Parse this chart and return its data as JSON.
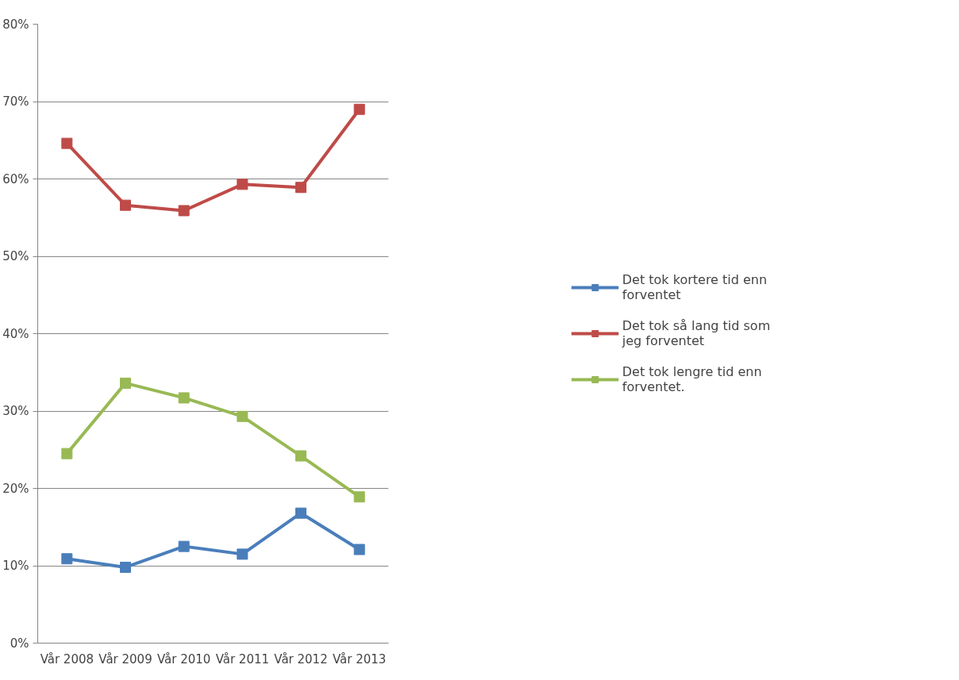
{
  "chart_data": {
    "type": "line",
    "categories": [
      "Vår 2008",
      "Vår 2009",
      "Vår 2010",
      "Vår 2011",
      "Vår 2012",
      "Vår 2013"
    ],
    "series": [
      {
        "name": "Det tok kortere tid enn forventet",
        "color": "#4a7ebb",
        "values": [
          10.9,
          9.8,
          12.5,
          11.5,
          16.8,
          12.1
        ]
      },
      {
        "name": "Det tok så lang tid som jeg forventet",
        "color": "#be4b48",
        "values": [
          64.6,
          56.6,
          55.9,
          59.3,
          58.9,
          69.0
        ]
      },
      {
        "name": "Det tok lengre tid enn forventet.",
        "color": "#98b954",
        "values": [
          24.5,
          33.6,
          31.7,
          29.3,
          24.2,
          18.9
        ]
      }
    ],
    "ylim": [
      0,
      80
    ],
    "yticks": [
      {
        "value": 0,
        "label": "0%"
      },
      {
        "value": 10,
        "label": "10%"
      },
      {
        "value": 20,
        "label": "20%"
      },
      {
        "value": 30,
        "label": "30%"
      },
      {
        "value": 40,
        "label": "40%"
      },
      {
        "value": 50,
        "label": "50%"
      },
      {
        "value": 60,
        "label": "60%"
      },
      {
        "value": 70,
        "label": "70%"
      },
      {
        "value": 80,
        "label": "80%"
      }
    ],
    "grid": "y",
    "legend": "right",
    "marker": "square",
    "line_style": "solid"
  }
}
